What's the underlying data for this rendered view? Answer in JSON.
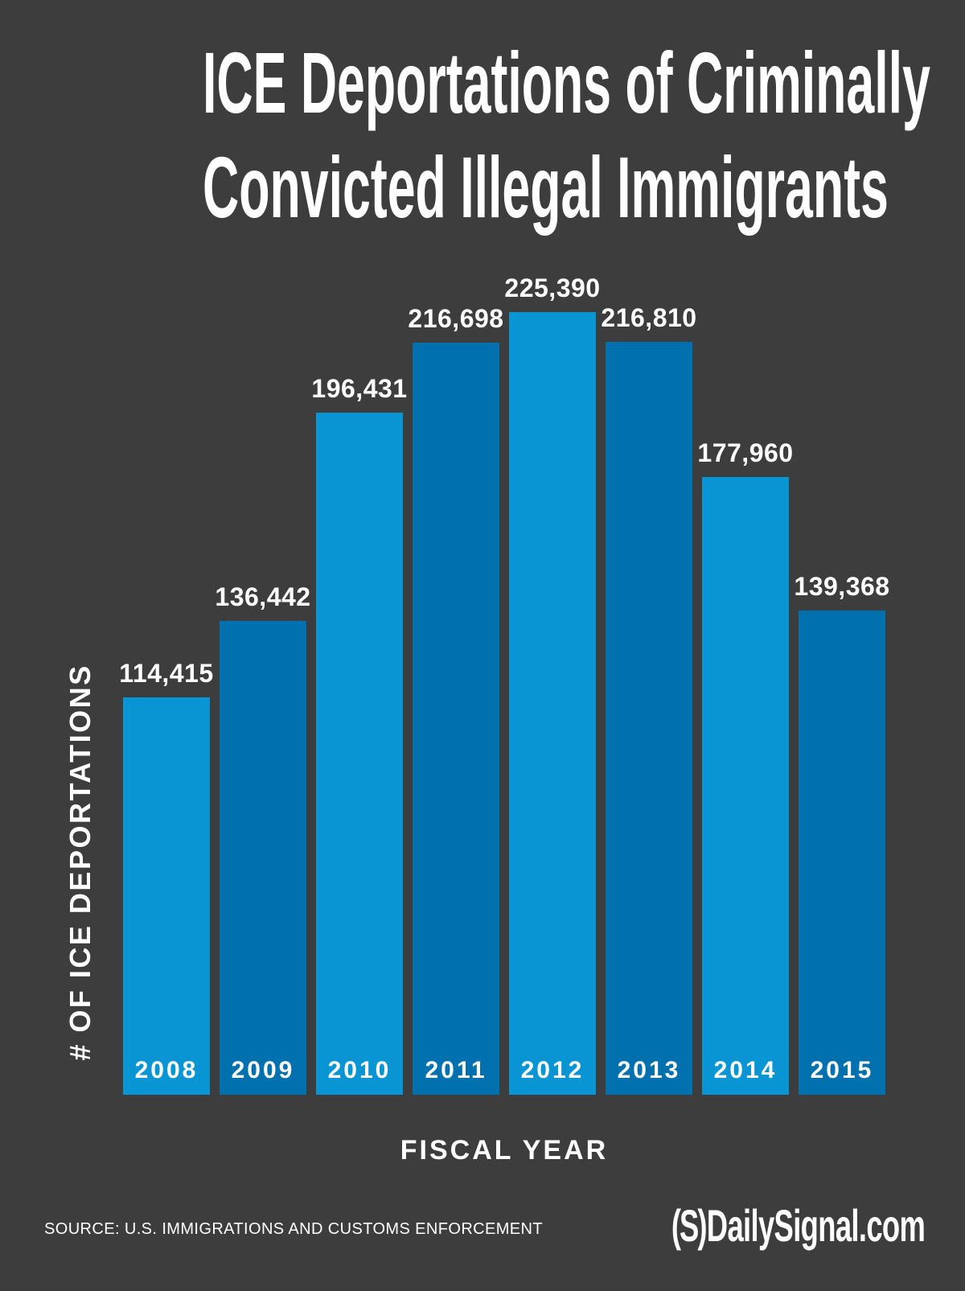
{
  "page": {
    "background": "#3d3d3d",
    "text_color": "#ffffff"
  },
  "title": {
    "line1": "ICE Deportations of Criminally",
    "line2": "Convicted Illegal Immigrants"
  },
  "chart_data": {
    "type": "bar",
    "title": "ICE Deportations of Criminally Convicted Illegal Immigrants",
    "categories": [
      "2008",
      "2009",
      "2010",
      "2011",
      "2012",
      "2013",
      "2014",
      "2015"
    ],
    "values": [
      114415,
      136442,
      196431,
      216698,
      225390,
      216810,
      177960,
      139368
    ],
    "value_labels": [
      "114,415",
      "136,442",
      "196,431",
      "216,698",
      "225,390",
      "216,810",
      "177,960",
      "139,368"
    ],
    "xlabel": "FISCAL YEAR",
    "ylabel": "# OF ICE DEPORTATIONS",
    "ylim": [
      0,
      225390
    ],
    "grid": false,
    "legend": false,
    "bar_colors_alternating": [
      "#0995d3",
      "#0071ae"
    ],
    "value_label_position": "above-bar",
    "category_label_position": "inside-bar-bottom"
  },
  "footer": {
    "source": "SOURCE: U.S. IMMIGRATIONS AND CUSTOMS ENFORCEMENT",
    "logo_mark": "(S)",
    "logo_text": "DailySignal.com"
  }
}
